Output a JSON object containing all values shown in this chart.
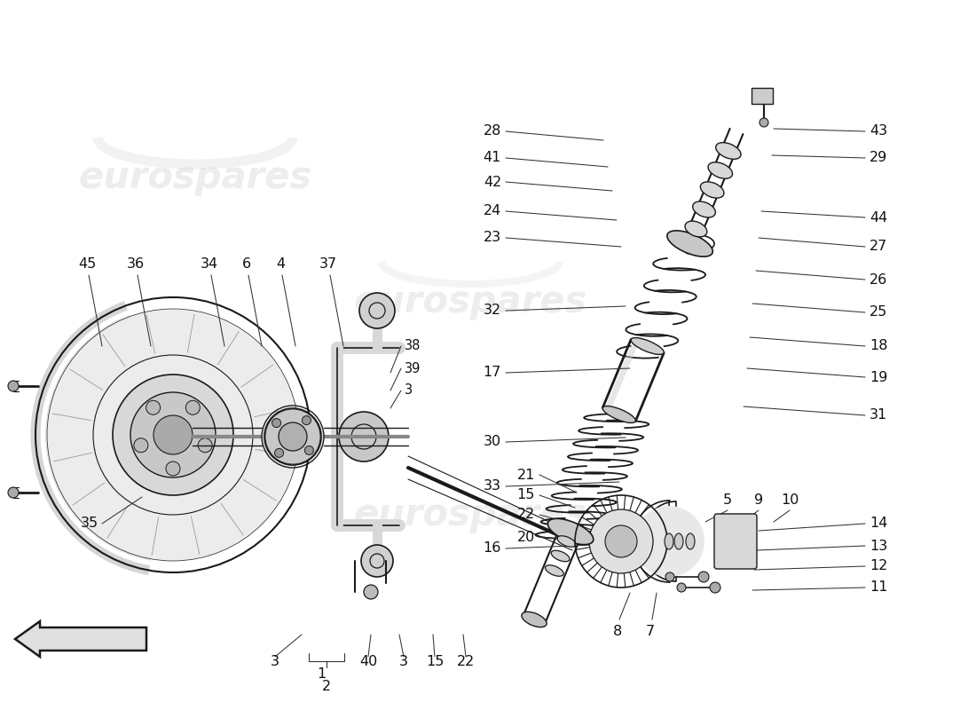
{
  "background_color": "#ffffff",
  "watermark_text": "eurospares",
  "watermark_color": "#c8c8c8",
  "watermark_alpha": 0.32,
  "line_color": "#1a1a1a",
  "label_fontsize": 11.5,
  "label_color": "#111111"
}
